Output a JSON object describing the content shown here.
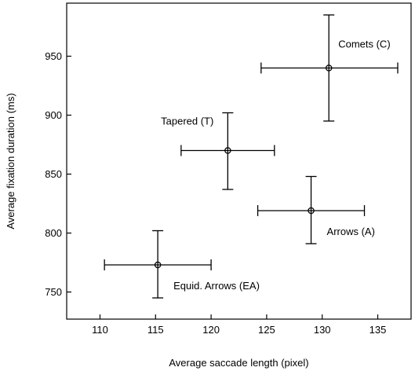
{
  "chart_data": {
    "type": "scatter",
    "title": "",
    "xlabel": "Average saccade length (pixel)",
    "ylabel": "Average fixation duration (ms)",
    "xlim": [
      107,
      138
    ],
    "ylim": [
      727,
      995
    ],
    "xticks": [
      110,
      115,
      120,
      125,
      130,
      135
    ],
    "yticks": [
      750,
      800,
      850,
      900,
      950
    ],
    "grid": false,
    "points": [
      {
        "name": "Comets (C)",
        "x": 130.6,
        "y": 940,
        "x_err": [
          124.5,
          136.8
        ],
        "y_err": [
          895,
          985
        ],
        "label_side": "upper-right"
      },
      {
        "name": "Tapered (T)",
        "x": 121.5,
        "y": 870,
        "x_err": [
          117.3,
          125.7
        ],
        "y_err": [
          837,
          902
        ],
        "label_side": "upper-left"
      },
      {
        "name": "Arrows (A)",
        "x": 129.0,
        "y": 819,
        "x_err": [
          124.2,
          133.8
        ],
        "y_err": [
          791,
          848
        ],
        "label_side": "lower-right"
      },
      {
        "name": "Equid. Arrows (EA)",
        "x": 115.2,
        "y": 773,
        "x_err": [
          110.4,
          120.0
        ],
        "y_err": [
          745,
          802
        ],
        "label_side": "lower-right"
      }
    ]
  }
}
